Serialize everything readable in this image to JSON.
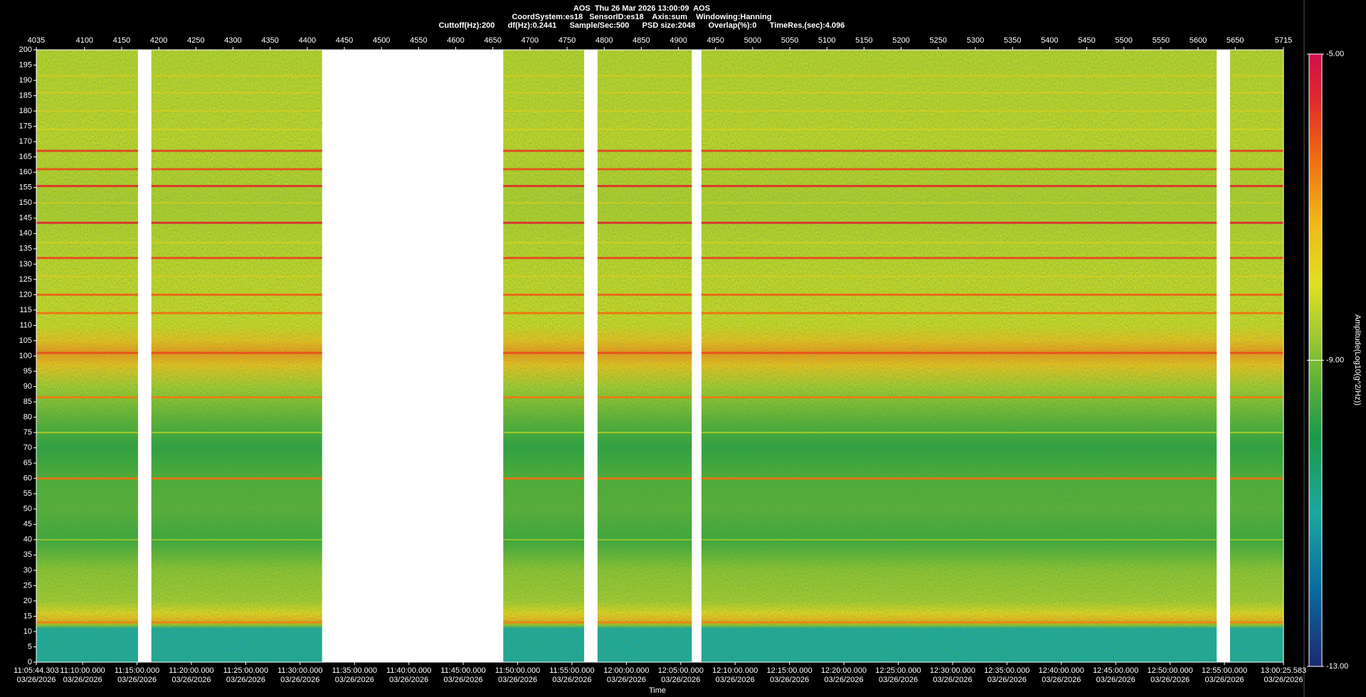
{
  "chart_data": {
    "type": "spectrogram",
    "header": [
      "AOS  Thu 26 Mar 2026 13:00:09  AOS",
      "CoordSystem:es18   SensorID:es18    Axis:sum    Windowing:Hanning",
      "Cuttoff(Hz):200      df(Hz):0.2441      Sample/Sec:500      PSD size:2048      Overlap(%):0      TimeRes.(sec):4.096"
    ],
    "xlabel": "Time",
    "colorbar_label": "Amplitude(Log10(g^2/Hz))",
    "xlim": [
      4035,
      5715
    ],
    "xticks": [
      4035,
      4100,
      4150,
      4200,
      4250,
      4300,
      4350,
      4400,
      4450,
      4500,
      4550,
      4600,
      4650,
      4700,
      4750,
      4800,
      4850,
      4900,
      4950,
      5000,
      5050,
      5100,
      5150,
      5200,
      5250,
      5300,
      5350,
      5400,
      5450,
      5500,
      5550,
      5600,
      5650,
      5715
    ],
    "x2ticks": [
      {
        "value": 4035,
        "label": "11:05:44.303",
        "date": "03/26/2026"
      },
      {
        "value": 4097.4,
        "label": "11:10:00.000",
        "date": "03/26/2026"
      },
      {
        "value": 4170.7,
        "label": "11:15:00.000",
        "date": "03/26/2026"
      },
      {
        "value": 4243.9,
        "label": "11:20:00.000",
        "date": "03/26/2026"
      },
      {
        "value": 4317.2,
        "label": "11:25:00.000",
        "date": "03/26/2026"
      },
      {
        "value": 4390.4,
        "label": "11:30:00.000",
        "date": "03/26/2026"
      },
      {
        "value": 4463.7,
        "label": "11:35:00.000",
        "date": "03/26/2026"
      },
      {
        "value": 4536.9,
        "label": "11:40:00.000",
        "date": "03/26/2026"
      },
      {
        "value": 4610.1,
        "label": "11:45:00.000",
        "date": "03/26/2026"
      },
      {
        "value": 4683.4,
        "label": "11:50:00.000",
        "date": "03/26/2026"
      },
      {
        "value": 4756.6,
        "label": "11:55:00.000",
        "date": "03/26/2026"
      },
      {
        "value": 4829.9,
        "label": "12:00:00.000",
        "date": "03/26/2026"
      },
      {
        "value": 4903.1,
        "label": "12:05:00.000",
        "date": "03/26/2026"
      },
      {
        "value": 4976.3,
        "label": "12:10:00.000",
        "date": "03/26/2026"
      },
      {
        "value": 5049.6,
        "label": "12:15:00.000",
        "date": "03/26/2026"
      },
      {
        "value": 5122.8,
        "label": "12:20:00.000",
        "date": "03/26/2026"
      },
      {
        "value": 5196.1,
        "label": "12:25:00.000",
        "date": "03/26/2026"
      },
      {
        "value": 5269.3,
        "label": "12:30:00.000",
        "date": "03/26/2026"
      },
      {
        "value": 5342.5,
        "label": "12:35:00.000",
        "date": "03/26/2026"
      },
      {
        "value": 5415.8,
        "label": "12:40:00.000",
        "date": "03/26/2026"
      },
      {
        "value": 5489.0,
        "label": "12:45:00.000",
        "date": "03/26/2026"
      },
      {
        "value": 5562.3,
        "label": "12:50:00.000",
        "date": "03/26/2026"
      },
      {
        "value": 5635.5,
        "label": "12:55:00.000",
        "date": "03/26/2026"
      },
      {
        "value": 5715,
        "label": "13:00:25.583",
        "date": "03/26/2026"
      }
    ],
    "ylim": [
      0,
      200
    ],
    "yticks": [
      0,
      5,
      10,
      15,
      20,
      25,
      30,
      35,
      40,
      45,
      50,
      55,
      60,
      65,
      70,
      75,
      80,
      85,
      90,
      95,
      100,
      105,
      110,
      115,
      120,
      125,
      130,
      135,
      140,
      145,
      150,
      155,
      160,
      165,
      170,
      175,
      180,
      185,
      190,
      195,
      200
    ],
    "clim": [
      -13,
      -5
    ],
    "cticks": [
      {
        "value": -5,
        "label": "-5.00"
      },
      {
        "value": -9,
        "label": "-9.00"
      },
      {
        "value": -13,
        "label": "-13.00"
      }
    ],
    "colormap": [
      {
        "value": -13,
        "color": "#1c2a70"
      },
      {
        "value": -12,
        "color": "#0a6aa0"
      },
      {
        "value": -11,
        "color": "#1aa8a0"
      },
      {
        "value": -10,
        "color": "#1a9a48"
      },
      {
        "value": -9.3,
        "color": "#5cb038"
      },
      {
        "value": -8.6,
        "color": "#a8cc30"
      },
      {
        "value": -8,
        "color": "#e0e020"
      },
      {
        "value": -7.2,
        "color": "#f0b818"
      },
      {
        "value": -6.4,
        "color": "#f07010"
      },
      {
        "value": -5.6,
        "color": "#e02a2a"
      },
      {
        "value": -5,
        "color": "#d0104c"
      }
    ],
    "segments": [
      [
        4035,
        4172
      ],
      [
        4190,
        4420
      ],
      [
        4664,
        4773
      ],
      [
        4791,
        4918
      ],
      [
        4931,
        5625
      ],
      [
        5643,
        5715
      ]
    ],
    "profile": {
      "freq": [
        0,
        11,
        12,
        14,
        16,
        20,
        30,
        40,
        50,
        60,
        70,
        80,
        90,
        97,
        101,
        105,
        110,
        130,
        150,
        170,
        200
      ],
      "amp": [
        -11,
        -11,
        -8.8,
        -7.2,
        -7.8,
        -8.6,
        -8.8,
        -9.6,
        -9.3,
        -9.4,
        -9.8,
        -9.2,
        -8.6,
        -7.4,
        -6.8,
        -7.4,
        -8.2,
        -8.3,
        -8.5,
        -8.3,
        -8.4
      ]
    },
    "lines": [
      {
        "freq": 191.5,
        "amp": -7.6
      },
      {
        "freq": 186,
        "amp": -7.6
      },
      {
        "freq": 180,
        "amp": -7.6
      },
      {
        "freq": 174,
        "amp": -7.8
      },
      {
        "freq": 167,
        "amp": -5.8
      },
      {
        "freq": 161,
        "amp": -6.0
      },
      {
        "freq": 155.5,
        "amp": -5.6
      },
      {
        "freq": 150,
        "amp": -7.6
      },
      {
        "freq": 143.5,
        "amp": -5.5
      },
      {
        "freq": 137,
        "amp": -7.8
      },
      {
        "freq": 132,
        "amp": -5.9
      },
      {
        "freq": 126,
        "amp": -7.6
      },
      {
        "freq": 120,
        "amp": -6.2
      },
      {
        "freq": 114,
        "amp": -6.4
      },
      {
        "freq": 101,
        "amp": -6.0
      },
      {
        "freq": 86.5,
        "amp": -6.5
      },
      {
        "freq": 75,
        "amp": -8.0
      },
      {
        "freq": 60,
        "amp": -6.4
      },
      {
        "freq": 40,
        "amp": -8.2
      },
      {
        "freq": 13,
        "amp": -6.6
      }
    ]
  }
}
